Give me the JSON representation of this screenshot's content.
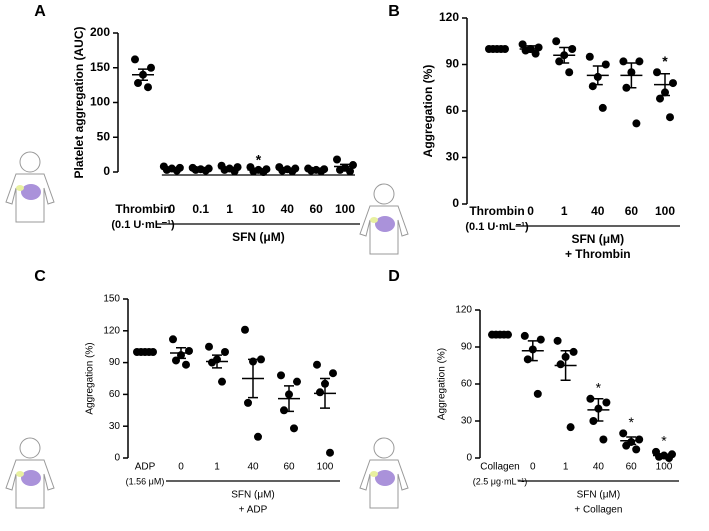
{
  "chart_data": [
    {
      "type": "dot",
      "panel": "A",
      "ylabel": "Platelet aggregation (AUC)",
      "categories": [
        "Thrombin",
        "0",
        "0.1",
        "1",
        "10",
        "40",
        "60",
        "100"
      ],
      "first_category_note": "(0.1 U·mL⁻¹)",
      "xlabel": "SFN (μM)",
      "points": [
        [
          162,
          150,
          140,
          128,
          122
        ],
        [
          8,
          6,
          5,
          3,
          2
        ],
        [
          6,
          5,
          4,
          3,
          2
        ],
        [
          9,
          7,
          5,
          3,
          1
        ],
        [
          7,
          4,
          3,
          1,
          0
        ],
        [
          7,
          5,
          4,
          2,
          1
        ],
        [
          5,
          4,
          3,
          2,
          1
        ],
        [
          18,
          10,
          6,
          3,
          1
        ]
      ],
      "means": [
        140,
        5,
        4,
        5,
        3,
        4,
        3,
        8
      ],
      "errors": [
        8,
        1,
        1,
        1.5,
        1.3,
        1,
        0.7,
        3
      ],
      "bracket_label": "*",
      "color": "#000000",
      "ylim": [
        0,
        200
      ],
      "yticks": [
        0,
        50,
        100,
        150,
        200
      ]
    },
    {
      "type": "dot",
      "panel": "B",
      "ylabel": "Aggregation (%)",
      "categories": [
        "Thrombin",
        "0",
        "1",
        "40",
        "60",
        "100"
      ],
      "first_category_note": "(0.1 U·mL⁻¹)",
      "xlabel": "SFN (μM)",
      "xlabel2": "+ Thrombin",
      "points": [
        [
          100,
          100,
          100,
          100,
          100
        ],
        [
          103,
          101,
          100,
          99,
          97
        ],
        [
          105,
          100,
          96,
          92,
          85
        ],
        [
          95,
          90,
          82,
          76,
          62
        ],
        [
          92,
          92,
          85,
          75,
          52
        ],
        [
          85,
          78,
          72,
          68,
          56
        ]
      ],
      "means": [
        100,
        100,
        96,
        83,
        83,
        77
      ],
      "errors": [
        0,
        2,
        5,
        6,
        8,
        7
      ],
      "significance": [
        null,
        null,
        null,
        null,
        null,
        "*"
      ],
      "color": "#000000",
      "ylim": [
        0,
        120
      ],
      "yticks": [
        0,
        30,
        60,
        90,
        120
      ]
    },
    {
      "type": "dot",
      "panel": "C",
      "ylabel": "Aggregation (%)",
      "categories": [
        "ADP",
        "0",
        "1",
        "40",
        "60",
        "100"
      ],
      "first_category_note": "(1.56 μM)",
      "xlabel": "SFN (μM)",
      "xlabel2": "+ ADP",
      "points": [
        [
          100,
          100,
          100,
          100,
          100
        ],
        [
          112,
          101,
          97,
          92,
          88
        ],
        [
          105,
          100,
          93,
          90,
          72
        ],
        [
          121,
          93,
          91,
          52,
          20
        ],
        [
          78,
          72,
          60,
          45,
          28
        ],
        [
          88,
          80,
          70,
          62,
          5
        ]
      ],
      "means": [
        100,
        99,
        91,
        75,
        56,
        61
      ],
      "errors": [
        0,
        5,
        6,
        18,
        12,
        14
      ],
      "color": "#000000",
      "ylim": [
        0,
        150
      ],
      "yticks": [
        0,
        30,
        60,
        90,
        120,
        150
      ]
    },
    {
      "type": "dot",
      "panel": "D",
      "ylabel": "Aggregation (%)",
      "categories": [
        "Collagen",
        "0",
        "1",
        "40",
        "60",
        "100"
      ],
      "first_category_note": "(2.5 μg·mL⁻¹)",
      "xlabel": "SFN (μM)",
      "xlabel2": "+ Collagen",
      "points": [
        [
          100,
          100,
          100,
          100,
          100
        ],
        [
          99,
          96,
          88,
          80,
          52
        ],
        [
          95,
          86,
          82,
          76,
          25
        ],
        [
          48,
          45,
          40,
          30,
          15
        ],
        [
          20,
          15,
          13,
          10,
          7
        ],
        [
          5,
          3,
          2,
          1,
          0
        ]
      ],
      "means": [
        100,
        87,
        75,
        39,
        14,
        2
      ],
      "errors": [
        0,
        8,
        12,
        9,
        3,
        1
      ],
      "significance": [
        null,
        null,
        null,
        "*",
        "*",
        "*"
      ],
      "color": "#000000",
      "ylim": [
        0,
        120
      ],
      "yticks": [
        0,
        30,
        60,
        90,
        120
      ]
    }
  ]
}
